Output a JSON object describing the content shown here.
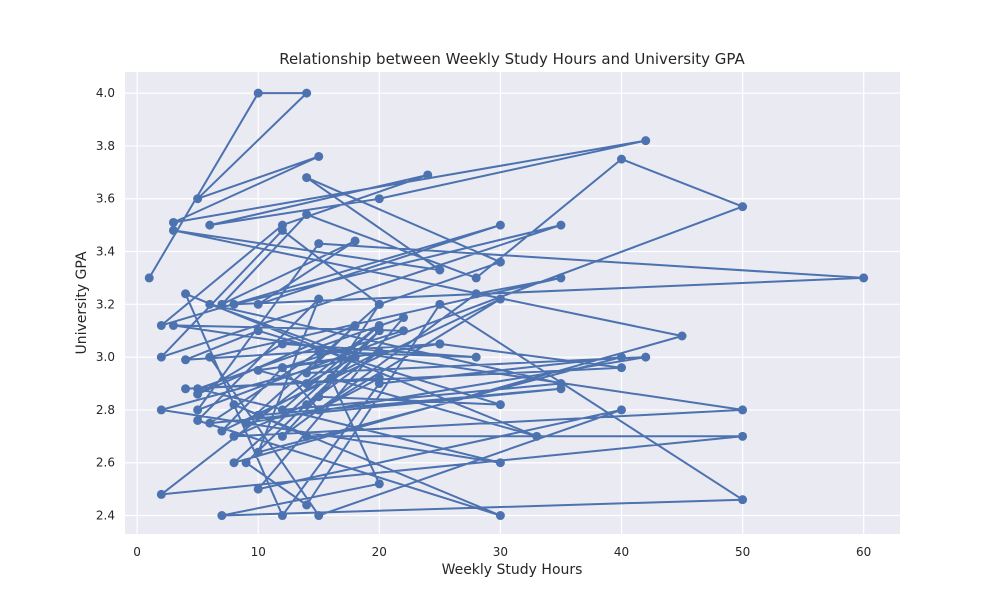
{
  "chart_data": {
    "type": "line",
    "title": "Relationship between Weekly Study Hours and University GPA",
    "xlabel": "Weekly Study Hours",
    "ylabel": "University GPA",
    "xlim": [
      -1,
      63
    ],
    "ylim": [
      2.33,
      4.08
    ],
    "xticks": [
      0,
      10,
      20,
      30,
      40,
      50,
      60
    ],
    "yticks": [
      2.4,
      2.6,
      2.8,
      3.0,
      3.2,
      3.4,
      3.6,
      3.8,
      4.0
    ],
    "ytick_labels": [
      "2.4",
      "2.6",
      "2.8",
      "3.0",
      "3.2",
      "3.4",
      "3.6",
      "3.8",
      "4.0"
    ],
    "grid": true,
    "legend": false,
    "colors": {
      "series": "#4c72b0",
      "background": "#eaeaf2",
      "grid": "#ffffff"
    },
    "series": [
      {
        "marker": "circle",
        "x": [
          1,
          10,
          14,
          5,
          15,
          3,
          42,
          20,
          6,
          24,
          12,
          2,
          30,
          10,
          18,
          7,
          14,
          28,
          40,
          50,
          5,
          15,
          60,
          8,
          35,
          2,
          12,
          20,
          30,
          14,
          25,
          3,
          45,
          8,
          20,
          12,
          28,
          35,
          6,
          15,
          40,
          10,
          22,
          5,
          30,
          2,
          18,
          9,
          14,
          25,
          50,
          7,
          20,
          16,
          33,
          4,
          12,
          20,
          40,
          10,
          15,
          5,
          30,
          8,
          14,
          50,
          2,
          20,
          12,
          35,
          6,
          18,
          14,
          10,
          25,
          40,
          4,
          20,
          15,
          30,
          7,
          12,
          22,
          3,
          50,
          8,
          14,
          20,
          10,
          35,
          6,
          15,
          28,
          12,
          5,
          18,
          14,
          42,
          9,
          20,
          15,
          30,
          10,
          4,
          25,
          12,
          15
        ],
        "y": [
          3.3,
          4.0,
          4.0,
          3.6,
          3.76,
          3.51,
          3.82,
          3.6,
          3.5,
          3.69,
          3.5,
          3.12,
          3.5,
          3.2,
          3.44,
          3.2,
          3.54,
          3.3,
          3.75,
          3.57,
          2.8,
          3.43,
          3.3,
          3.2,
          3.5,
          3.0,
          3.48,
          3.2,
          3.36,
          3.68,
          3.33,
          3.48,
          3.08,
          2.6,
          3.1,
          2.7,
          3.24,
          3.3,
          3.0,
          2.4,
          2.8,
          2.5,
          3.15,
          2.88,
          2.6,
          2.8,
          3.0,
          2.6,
          2.44,
          3.2,
          2.46,
          2.4,
          2.52,
          2.92,
          2.7,
          3.24,
          2.4,
          2.9,
          3.0,
          2.64,
          3.22,
          2.76,
          2.4,
          2.82,
          2.7,
          2.7,
          2.48,
          3.12,
          2.8,
          2.9,
          3.2,
          3.0,
          2.9,
          2.95,
          3.05,
          2.96,
          2.88,
          2.92,
          2.8,
          3.22,
          2.72,
          2.96,
          3.1,
          3.12,
          2.8,
          2.7,
          2.82,
          3.02,
          2.78,
          2.88,
          2.75,
          3.02,
          3.0,
          3.05,
          2.86,
          3.12,
          2.94,
          3.0,
          2.75,
          3.2,
          2.85,
          2.82,
          3.1,
          2.99,
          3.05,
          2.96,
          2.8
        ]
      }
    ]
  }
}
